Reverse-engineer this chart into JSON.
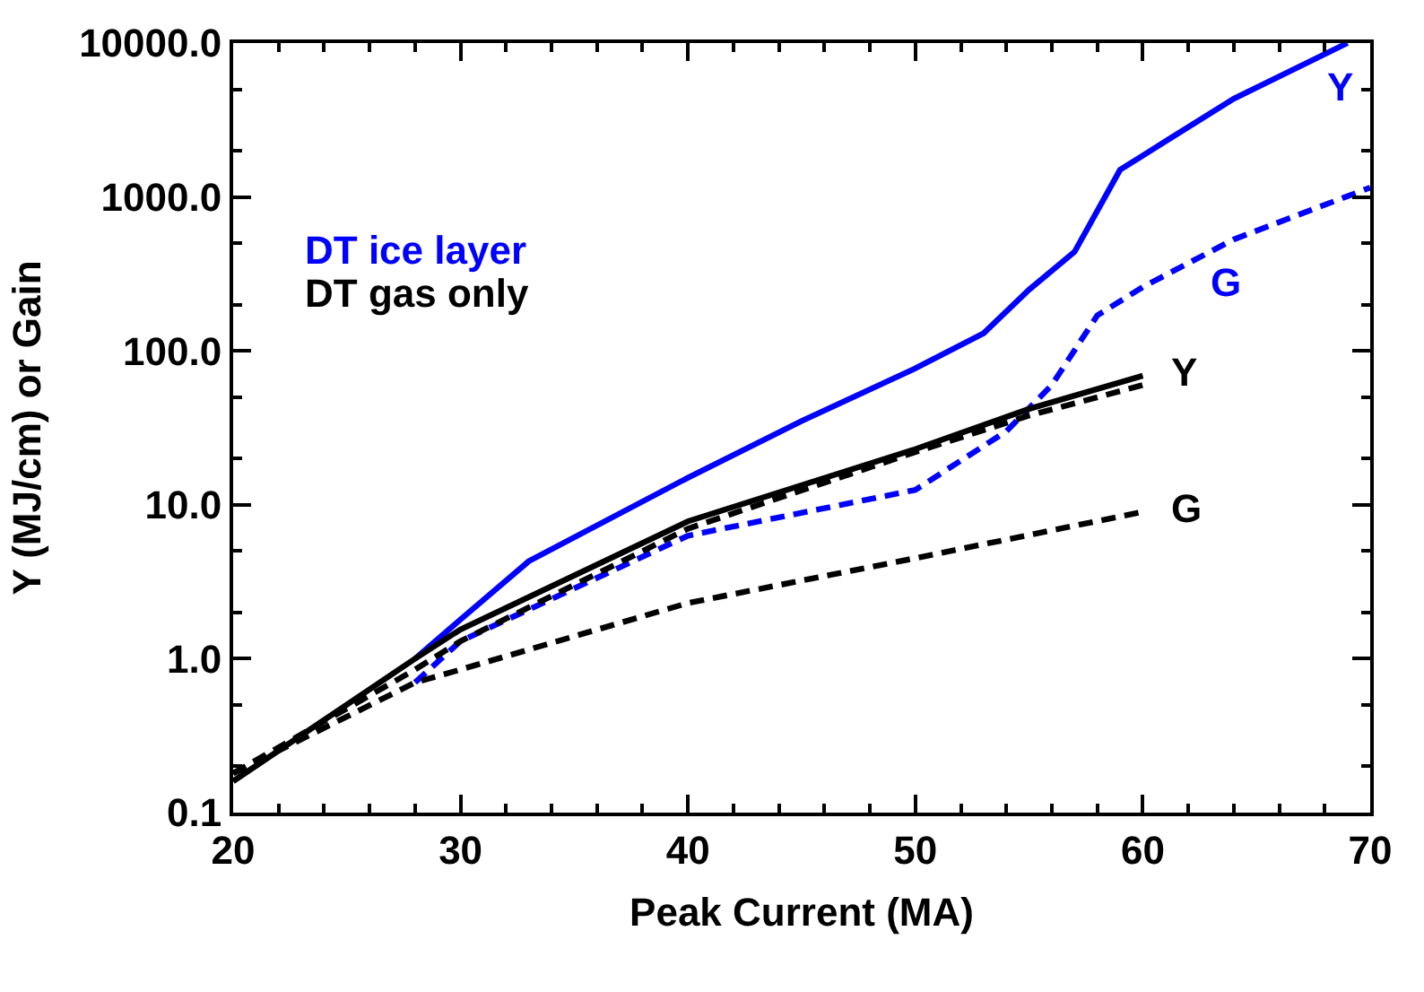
{
  "chart_data": {
    "type": "line",
    "xlabel": "Peak Current (MA)",
    "ylabel": "Y (MJ/cm) or Gain",
    "log": "y",
    "xlim": [
      20,
      70
    ],
    "xticks": [
      20,
      30,
      40,
      50,
      60,
      70
    ],
    "ylim": [
      0.1,
      10000
    ],
    "yticks": [
      {
        "value": 0.1,
        "label": "0.1"
      },
      {
        "value": 1,
        "label": "1.0"
      },
      {
        "value": 10,
        "label": "10.0"
      },
      {
        "value": 100,
        "label": "100.0"
      },
      {
        "value": 1000,
        "label": "1000.0"
      },
      {
        "value": 10000,
        "label": "10000.0"
      }
    ],
    "legend": "top left",
    "series": [
      {
        "name": "DT ice layer",
        "color": "#0000ff",
        "line_style": "solid",
        "x": [
          28,
          30,
          33,
          40,
          45,
          50,
          53,
          55,
          57,
          59,
          61,
          64,
          69
        ],
        "values": [
          1.0,
          1.8,
          4.3,
          15,
          35,
          77,
          130,
          250,
          440,
          1500,
          2300,
          4350,
          10000
        ]
      },
      {
        "color": "#0000ff",
        "line_style": "dashed",
        "x": [
          28,
          30,
          40,
          50,
          54,
          56,
          58,
          60,
          64,
          70
        ],
        "values": [
          0.7,
          1.3,
          6.3,
          12.5,
          30,
          60,
          170,
          260,
          530,
          1150
        ]
      },
      {
        "name": "DT gas only",
        "color": "#000000",
        "line_style": "solid",
        "x": [
          20,
          28,
          30,
          40,
          50,
          55,
          60
        ],
        "values": [
          0.16,
          1.0,
          1.55,
          7.8,
          23,
          42,
          69
        ]
      },
      {
        "color": "#000000",
        "line_style": "dashed",
        "x": [
          20,
          28,
          30,
          40,
          50,
          55,
          60
        ],
        "values": [
          0.18,
          0.85,
          1.3,
          7,
          22,
          38,
          60
        ]
      },
      {
        "color": "#000000",
        "line_style": "dashed",
        "x": [
          20,
          28,
          30,
          40,
          50,
          60
        ],
        "values": [
          0.18,
          0.7,
          0.85,
          2.3,
          4.5,
          9
        ]
      }
    ],
    "annotations": [
      {
        "text": "Y",
        "x": 69,
        "y": 10000
      },
      {
        "text": "G",
        "x": 64,
        "y": 530
      },
      {
        "text": "Y",
        "x": 60,
        "y": 69
      },
      {
        "text": "G",
        "x": 60,
        "y": 9
      }
    ]
  }
}
